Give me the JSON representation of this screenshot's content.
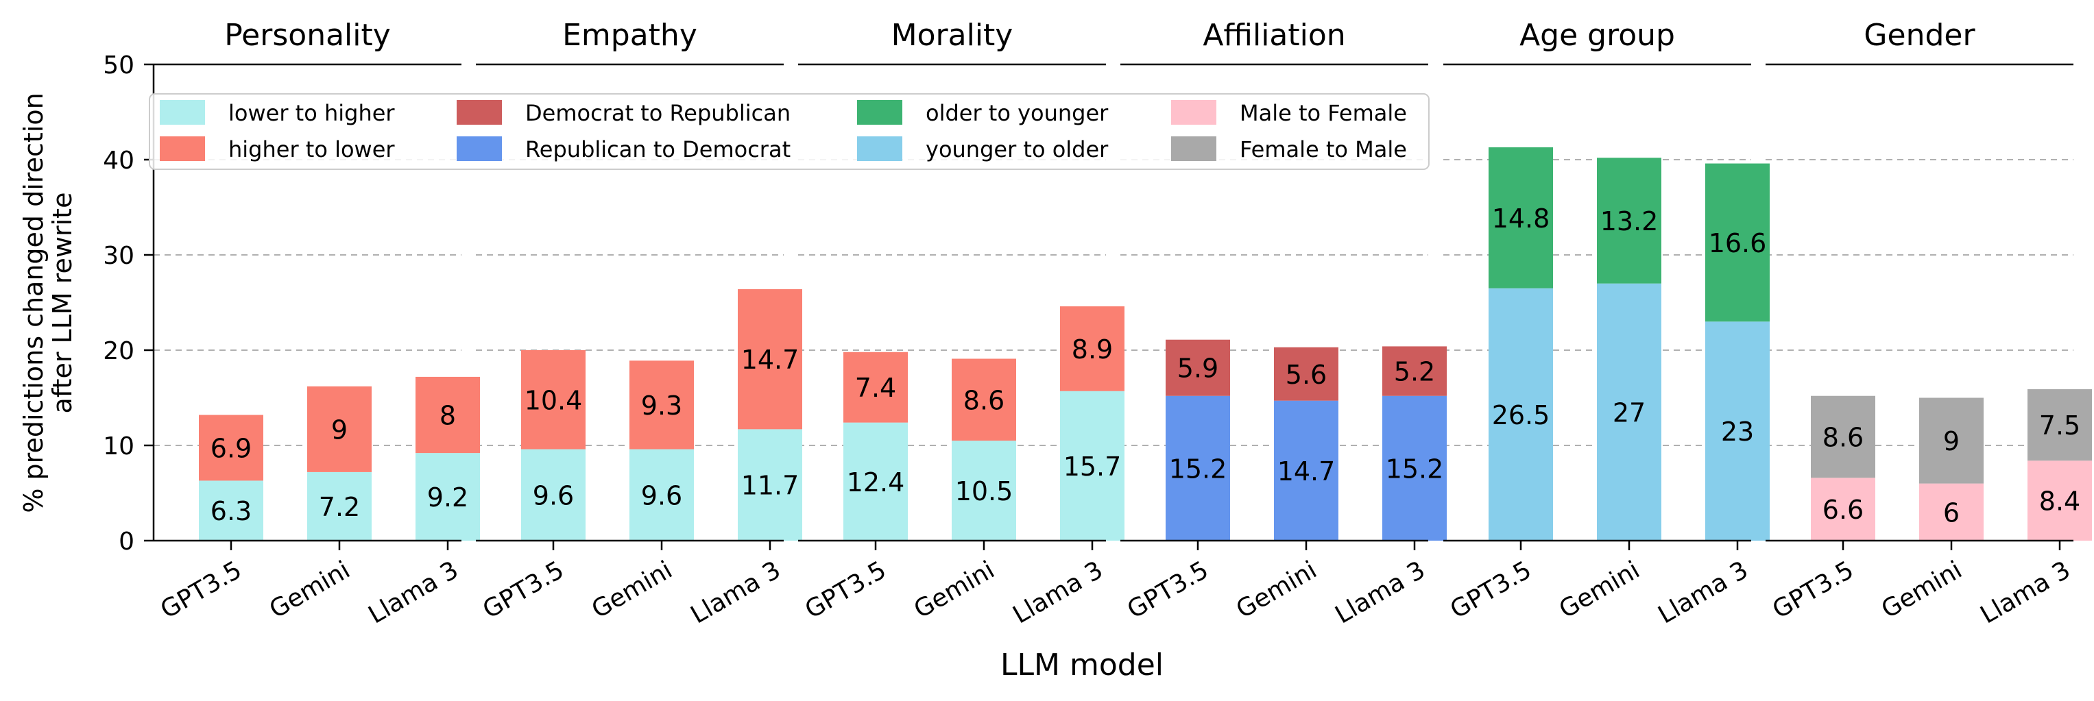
{
  "chart_data": {
    "type": "bar",
    "stacked": true,
    "ylabel": "% predictions changed direction\nafter LLM rewrite",
    "xlabel": "LLM model",
    "ylim": [
      0,
      50
    ],
    "yticks": [
      0,
      10,
      20,
      30,
      40,
      50
    ],
    "grid": "horizontal-dashed",
    "legend_position": "top-left",
    "categories": [
      "GPT3.5",
      "Gemini",
      "Llama 3"
    ],
    "panels": [
      {
        "title": "Personality",
        "series": [
          {
            "name": "lower to higher",
            "color": "#AFEEEE",
            "values": [
              6.3,
              7.2,
              9.2
            ]
          },
          {
            "name": "higher to lower",
            "color": "#FA8072",
            "values": [
              6.9,
              9,
              8
            ]
          }
        ]
      },
      {
        "title": "Empathy",
        "series": [
          {
            "name": "lower to higher",
            "color": "#AFEEEE",
            "values": [
              9.6,
              9.6,
              11.7
            ]
          },
          {
            "name": "higher to lower",
            "color": "#FA8072",
            "values": [
              10.4,
              9.3,
              14.7
            ]
          }
        ]
      },
      {
        "title": "Morality",
        "series": [
          {
            "name": "lower to higher",
            "color": "#AFEEEE",
            "values": [
              12.4,
              10.5,
              15.7
            ]
          },
          {
            "name": "higher to lower",
            "color": "#FA8072",
            "values": [
              7.4,
              8.6,
              8.9
            ]
          }
        ]
      },
      {
        "title": "Affiliation",
        "series": [
          {
            "name": "Republican to Democrat",
            "color": "#6495ED",
            "values": [
              15.2,
              14.7,
              15.2
            ]
          },
          {
            "name": "Democrat to Republican",
            "color": "#CD5C5C",
            "values": [
              5.9,
              5.6,
              5.2
            ]
          }
        ]
      },
      {
        "title": "Age group",
        "series": [
          {
            "name": "younger to older",
            "color": "#87CEEB",
            "values": [
              26.5,
              27,
              23
            ]
          },
          {
            "name": "older to younger",
            "color": "#3CB371",
            "values": [
              14.8,
              13.2,
              16.6
            ]
          }
        ]
      },
      {
        "title": "Gender",
        "series": [
          {
            "name": "Male to Female",
            "color": "#FFC0CB",
            "values": [
              6.6,
              6,
              8.4
            ]
          },
          {
            "name": "Female to Male",
            "color": "#A9A9A9",
            "values": [
              8.6,
              9,
              7.5
            ]
          }
        ]
      }
    ],
    "legend": [
      {
        "label": "lower to higher",
        "color": "#AFEEEE"
      },
      {
        "label": "higher to lower",
        "color": "#FA8072"
      },
      {
        "label": "Democrat to Republican",
        "color": "#CD5C5C"
      },
      {
        "label": "Republican to Democrat",
        "color": "#6495ED"
      },
      {
        "label": "older to younger",
        "color": "#3CB371"
      },
      {
        "label": "younger to older",
        "color": "#87CEEB"
      },
      {
        "label": "Male to Female",
        "color": "#FFC0CB"
      },
      {
        "label": "Female to Male",
        "color": "#A9A9A9"
      }
    ]
  }
}
